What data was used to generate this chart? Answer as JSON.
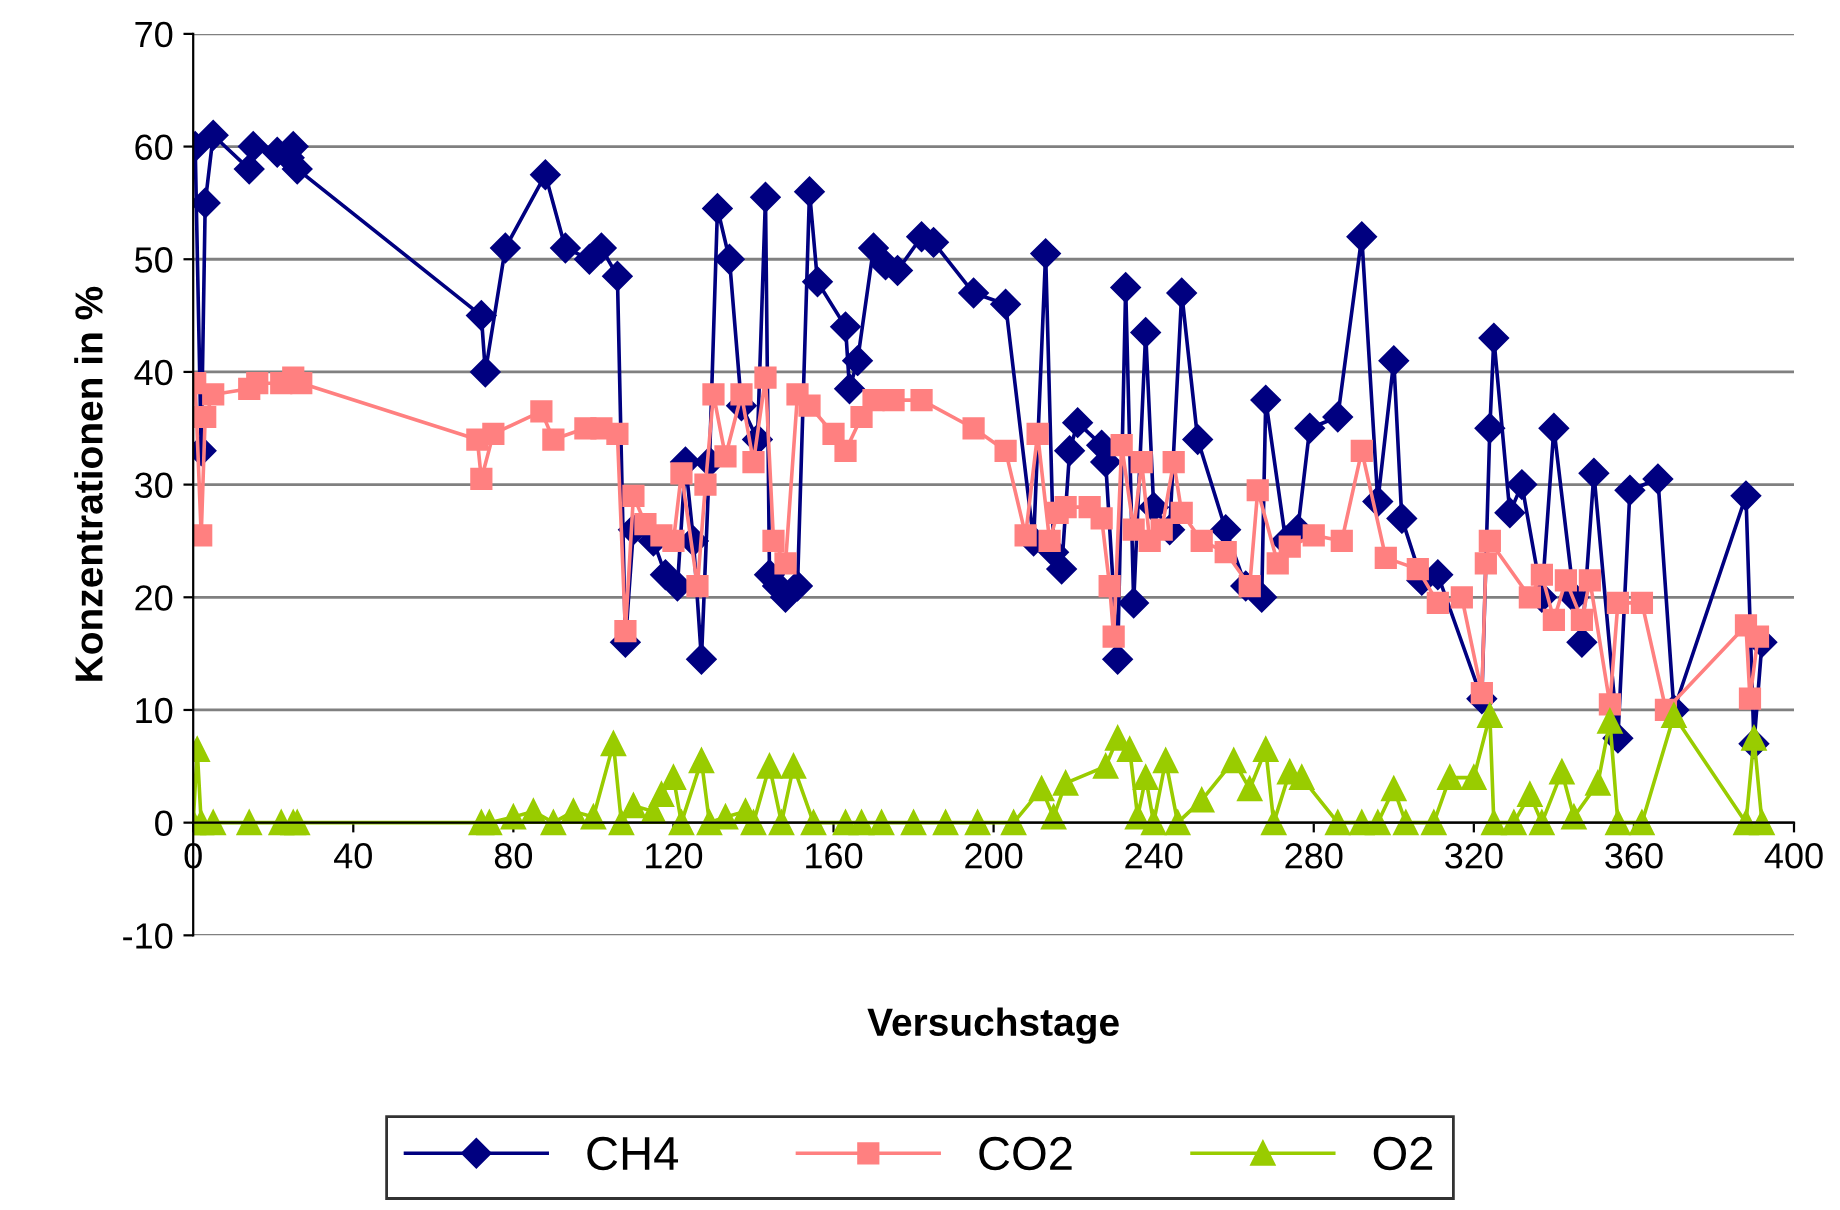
{
  "chart_data": {
    "type": "line",
    "xlabel": "Versuchstage",
    "ylabel": "Konzentrationen in %",
    "xlim": [
      0,
      400
    ],
    "xticks": [
      0,
      40,
      80,
      120,
      160,
      200,
      240,
      280,
      320,
      360,
      400
    ],
    "ylim": [
      -10,
      70
    ],
    "yticks": [
      -10,
      0,
      10,
      20,
      30,
      40,
      50,
      60,
      70
    ],
    "grid": "y",
    "legend": "bottom",
    "line_style": "solid",
    "series": [
      {
        "name": "CH4",
        "color": "#000080",
        "marker": "diamond",
        "x": [
          0.5,
          2,
          3,
          5,
          14,
          15,
          21,
          24,
          25,
          26,
          72,
          73,
          78,
          88,
          93,
          99,
          102,
          106,
          108,
          110,
          115,
          118,
          121,
          123,
          125,
          127,
          129,
          131,
          134,
          137,
          141,
          143,
          144,
          146,
          148,
          151,
          154,
          156,
          163,
          164,
          166,
          170,
          173,
          176,
          182,
          185,
          195,
          203,
          210,
          213,
          215,
          217,
          219,
          221,
          227,
          228,
          231,
          233,
          235,
          238,
          240,
          244,
          247,
          251,
          258,
          263,
          267,
          268,
          273,
          276,
          279,
          286,
          292,
          296,
          300,
          302,
          307,
          311,
          322,
          324,
          325,
          329,
          332,
          337,
          340,
          345,
          347,
          350,
          356,
          359,
          366,
          370,
          388,
          390,
          392
        ],
        "values": [
          60,
          33,
          55,
          61,
          58,
          60,
          59.5,
          59,
          60,
          58,
          45,
          40,
          51,
          57.5,
          51,
          50,
          51,
          48.5,
          16,
          26,
          25,
          22,
          21,
          32,
          25,
          14.5,
          32,
          54.5,
          50,
          37,
          34,
          55.5,
          22,
          21,
          20,
          21,
          56,
          48,
          44,
          38.5,
          41,
          51,
          49.5,
          49,
          52,
          51.5,
          47,
          46,
          25,
          50.5,
          24,
          22.5,
          33,
          35.5,
          33.5,
          32,
          14.5,
          47.5,
          19.5,
          43.5,
          28,
          26,
          47,
          34,
          26,
          21,
          20,
          37.5,
          25,
          26,
          35,
          36,
          52,
          28.5,
          41,
          27,
          21.5,
          22,
          11,
          35,
          43,
          27.5,
          30,
          20,
          35,
          20,
          16,
          31,
          7.5,
          29.5,
          30.5,
          10,
          29,
          7,
          16
        ]
      },
      {
        "name": "CO2",
        "color": "#ff8080",
        "marker": "square",
        "x": [
          0.5,
          2,
          3,
          5,
          14,
          16,
          22,
          25,
          27,
          71,
          72,
          75,
          87,
          90,
          98,
          102,
          106,
          108,
          110,
          113,
          117,
          120,
          122,
          126,
          128,
          130,
          133,
          137,
          140,
          143,
          145,
          148,
          151,
          154,
          160,
          163,
          167,
          170,
          175,
          182,
          195,
          203,
          208,
          211,
          214,
          216,
          218,
          224,
          227,
          229,
          230,
          232,
          235,
          237,
          239,
          242,
          245,
          247,
          252,
          258,
          264,
          266,
          271,
          274,
          280,
          287,
          292,
          298,
          306,
          311,
          317,
          322,
          323,
          324,
          334,
          337,
          340,
          343,
          347,
          349,
          354,
          356,
          362,
          368,
          388,
          389,
          391
        ],
        "values": [
          39,
          25.5,
          36,
          38,
          38.5,
          39,
          39,
          39.5,
          39,
          34,
          30.5,
          34.5,
          36.5,
          34,
          35,
          35,
          34.5,
          17,
          29,
          26.5,
          25.5,
          25,
          31,
          21,
          30,
          38,
          32.5,
          38,
          32,
          39.5,
          25,
          23,
          38,
          37,
          34.5,
          33,
          36,
          37.5,
          37.5,
          37.5,
          35,
          33,
          25.5,
          34.5,
          25,
          27.5,
          28,
          28,
          27,
          21,
          16.5,
          33.5,
          26,
          32,
          25,
          26,
          32,
          27.5,
          25,
          24,
          21,
          29.5,
          23,
          24.5,
          25.5,
          25,
          33,
          23.5,
          22.5,
          19.5,
          20,
          11.5,
          23,
          25,
          20,
          22,
          18,
          21.5,
          18,
          21.5,
          10.5,
          19.5,
          19.5,
          10,
          17.5,
          11,
          16.5
        ]
      },
      {
        "name": "O2",
        "color": "#99cc00",
        "marker": "triangle",
        "x": [
          0,
          1,
          2,
          5,
          14,
          22,
          25,
          26,
          72,
          74,
          80,
          85,
          90,
          95,
          100,
          105,
          107,
          110,
          115,
          117,
          120,
          122,
          127,
          129,
          133,
          138,
          140,
          144,
          147,
          150,
          155,
          163,
          167,
          172,
          180,
          188,
          196,
          205,
          212,
          215,
          218,
          228,
          231,
          234,
          236,
          238,
          240,
          243,
          246,
          252,
          260,
          264,
          268,
          270,
          274,
          277,
          286,
          292,
          296,
          300,
          303,
          310,
          314,
          320,
          324,
          325,
          330,
          334,
          337,
          342,
          345,
          351,
          354,
          356,
          362,
          370,
          388,
          390,
          392
        ],
        "values": [
          0,
          6.5,
          0,
          0,
          0,
          0,
          0,
          0,
          0,
          0,
          0.5,
          1,
          0,
          1,
          0.5,
          7,
          0,
          1.5,
          1,
          2.5,
          4,
          0,
          5.5,
          0,
          0.5,
          1,
          0,
          5,
          0,
          5,
          0,
          0,
          0,
          0,
          0,
          0,
          0,
          0,
          3,
          0.5,
          3.5,
          5,
          7.5,
          6.5,
          0.5,
          4,
          0,
          5.5,
          0,
          2,
          5.5,
          3,
          6.5,
          0,
          4.5,
          4,
          0,
          0,
          0,
          3,
          0,
          0,
          4,
          4,
          9.5,
          0,
          0,
          2.5,
          0,
          4.5,
          0.5,
          3.5,
          9,
          0,
          0,
          9.5,
          0,
          7.5,
          0
        ]
      }
    ]
  }
}
